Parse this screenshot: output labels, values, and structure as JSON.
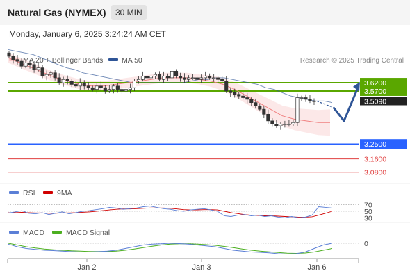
{
  "header": {
    "title": "Natural Gas (NYMEX)",
    "timeframe": "30 MIN",
    "datetime": "Monday, January 6, 2025 3:24:24 AM CET"
  },
  "legend": {
    "ma20_label": "MA 20 + Bollinger Bands",
    "ma50_label": "MA 50",
    "credit": "Research © 2025 Trading Central",
    "ma20_color": "#f08080",
    "ma50_color": "#2f5597"
  },
  "chart_data": {
    "type": "candlestick",
    "x_labels": [
      "Jan 2",
      "Jan 3",
      "Jan 6"
    ],
    "price_panel": {
      "ylim": [
        3.02,
        3.7
      ],
      "current_price": 3.509,
      "current_price_label": "3.5090",
      "levels": [
        {
          "value": 3.62,
          "label": "3.6200",
          "color": "#5aa700",
          "style": "pivot"
        },
        {
          "value": 3.57,
          "label": "3.5700",
          "color": "#5aa700",
          "style": "resistance"
        },
        {
          "value": 3.25,
          "label": "3.2500",
          "color": "#2962ff",
          "style": "support"
        },
        {
          "value": 3.16,
          "label": "3.1600",
          "color": "#e04040",
          "style": "support"
        },
        {
          "value": 3.08,
          "label": "3.0800",
          "color": "#e04040",
          "style": "support"
        }
      ],
      "close_series": [
        3.78,
        3.76,
        3.75,
        3.72,
        3.74,
        3.73,
        3.7,
        3.71,
        3.66,
        3.67,
        3.68,
        3.65,
        3.62,
        3.64,
        3.63,
        3.61,
        3.6,
        3.62,
        3.6,
        3.59,
        3.58,
        3.6,
        3.59,
        3.57,
        3.58,
        3.6,
        3.58,
        3.57,
        3.58,
        3.59,
        3.63,
        3.64,
        3.66,
        3.65,
        3.66,
        3.67,
        3.64,
        3.66,
        3.65,
        3.69,
        3.66,
        3.65,
        3.64,
        3.65,
        3.65,
        3.64,
        3.65,
        3.66,
        3.65,
        3.65,
        3.64,
        3.63,
        3.57,
        3.56,
        3.55,
        3.54,
        3.53,
        3.52,
        3.5,
        3.48,
        3.46,
        3.43,
        3.39,
        3.37,
        3.36,
        3.37,
        3.37,
        3.37,
        3.38,
        3.53,
        3.53,
        3.52,
        3.51,
        3.51
      ],
      "ma50_series": [
        3.82,
        3.81,
        3.8,
        3.79,
        3.77,
        3.75,
        3.73,
        3.71,
        3.7,
        3.68,
        3.67,
        3.66,
        3.65,
        3.64,
        3.63,
        3.62,
        3.62,
        3.62,
        3.62,
        3.62,
        3.62,
        3.62,
        3.63,
        3.64,
        3.64,
        3.65,
        3.65,
        3.64,
        3.63,
        3.62,
        3.61,
        3.59,
        3.58,
        3.56,
        3.54,
        3.53,
        3.52,
        3.51,
        3.51,
        3.5
      ],
      "ma20_series": [
        3.77,
        3.74,
        3.71,
        3.68,
        3.65,
        3.63,
        3.61,
        3.6,
        3.6,
        3.61,
        3.62,
        3.63,
        3.64,
        3.65,
        3.65,
        3.65,
        3.64,
        3.63,
        3.61,
        3.58,
        3.54,
        3.5,
        3.46,
        3.42,
        3.4,
        3.39,
        3.38,
        3.38
      ],
      "forecast_path": [
        3.509,
        3.47,
        3.39,
        3.6
      ]
    },
    "rsi_panel": {
      "legend": [
        "RSI",
        "9MA"
      ],
      "colors": {
        "rsi": "#5b7fd6",
        "ma": "#d00000"
      },
      "levels": [
        70,
        50,
        30
      ],
      "level_labels": [
        "70",
        "50",
        "30"
      ],
      "ylim": [
        20,
        80
      ],
      "rsi_series": [
        45,
        48,
        52,
        44,
        42,
        46,
        40,
        44,
        48,
        42,
        46,
        50,
        52,
        55,
        58,
        62,
        60,
        56,
        58,
        60,
        64,
        66,
        62,
        58,
        56,
        52,
        50,
        54,
        56,
        58,
        54,
        50,
        36,
        34,
        38,
        40,
        36,
        38,
        34,
        36,
        32,
        30,
        34,
        30,
        32,
        38,
        64,
        62,
        60
      ],
      "ma_series": [
        46,
        46,
        47,
        46,
        45,
        45,
        44,
        44,
        45,
        45,
        46,
        47,
        48,
        50,
        52,
        54,
        56,
        57,
        57,
        58,
        59,
        60,
        60,
        60,
        59,
        57,
        55,
        54,
        54,
        55,
        55,
        54,
        50,
        46,
        43,
        40,
        38,
        37,
        36,
        36,
        35,
        34,
        33,
        32,
        32,
        33,
        38,
        44,
        50
      ]
    },
    "macd_panel": {
      "legend": [
        "MACD",
        "MACD Signal"
      ],
      "colors": {
        "macd": "#5b7fd6",
        "signal": "#4caf20"
      },
      "zero_label": "0",
      "ylim": [
        -0.08,
        0.04
      ],
      "macd_series": [
        -0.005,
        -0.02,
        -0.03,
        -0.035,
        -0.04,
        -0.042,
        -0.045,
        -0.048,
        -0.05,
        -0.05,
        -0.048,
        -0.045,
        -0.04,
        -0.03,
        -0.02,
        -0.01,
        -0.005,
        -0.003,
        0.0,
        -0.002,
        -0.005,
        -0.01,
        -0.015,
        -0.02,
        -0.03,
        -0.04,
        -0.045,
        -0.05,
        -0.052,
        -0.055,
        -0.06,
        -0.062,
        -0.06,
        -0.05,
        -0.03,
        -0.01,
        0.0
      ],
      "signal_series": [
        0.0,
        -0.01,
        -0.02,
        -0.027,
        -0.033,
        -0.037,
        -0.04,
        -0.043,
        -0.045,
        -0.047,
        -0.047,
        -0.047,
        -0.045,
        -0.04,
        -0.033,
        -0.025,
        -0.017,
        -0.01,
        -0.005,
        -0.003,
        -0.003,
        -0.005,
        -0.008,
        -0.012,
        -0.018,
        -0.025,
        -0.033,
        -0.04,
        -0.045,
        -0.049,
        -0.053,
        -0.057,
        -0.058,
        -0.056,
        -0.05,
        -0.04,
        -0.03
      ]
    }
  }
}
